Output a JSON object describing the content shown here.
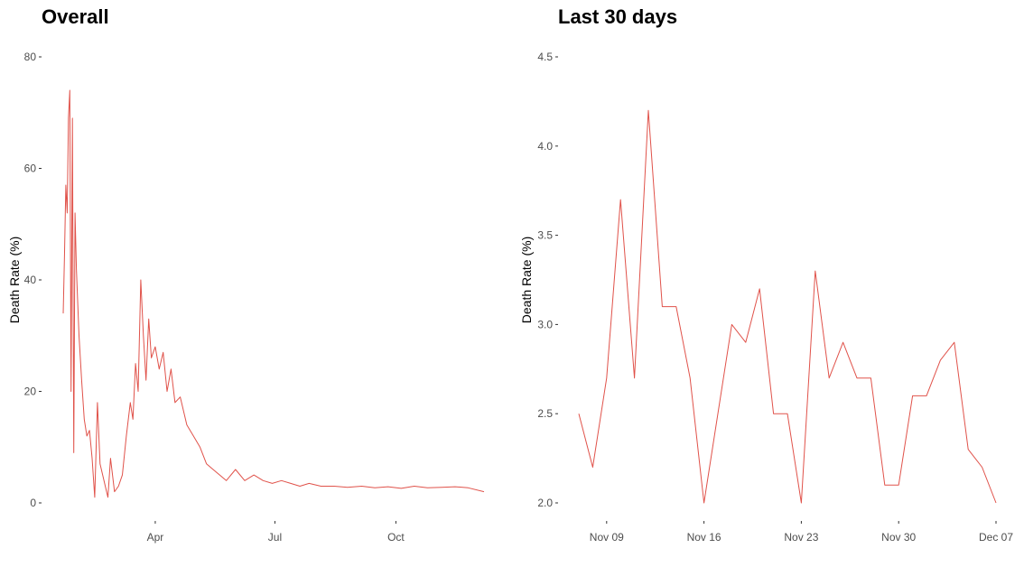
{
  "chart_data": [
    {
      "type": "line",
      "title": "Overall",
      "xlabel": "",
      "ylabel": "Death Rate (%)",
      "ylim": [
        0,
        80
      ],
      "yticks": [
        0,
        20,
        40,
        60,
        80
      ],
      "x_tick_labels": [
        "Apr",
        "Jul",
        "Oct"
      ],
      "xlim": [
        "2020-01-22",
        "2020-12-07"
      ],
      "grid": false,
      "series": [
        {
          "color": "#e0524a",
          "x": [
            "2020-01-22",
            "2020-01-23",
            "2020-01-24",
            "2020-01-25",
            "2020-01-26",
            "2020-01-27",
            "2020-01-28",
            "2020-01-29",
            "2020-01-30",
            "2020-01-31",
            "2020-02-01",
            "2020-02-03",
            "2020-02-05",
            "2020-02-07",
            "2020-02-09",
            "2020-02-11",
            "2020-02-13",
            "2020-02-15",
            "2020-02-17",
            "2020-02-19",
            "2020-02-21",
            "2020-02-23",
            "2020-02-25",
            "2020-02-27",
            "2020-03-01",
            "2020-03-04",
            "2020-03-07",
            "2020-03-10",
            "2020-03-13",
            "2020-03-15",
            "2020-03-17",
            "2020-03-19",
            "2020-03-21",
            "2020-03-23",
            "2020-03-25",
            "2020-03-27",
            "2020-03-29",
            "2020-04-01",
            "2020-04-04",
            "2020-04-07",
            "2020-04-10",
            "2020-04-13",
            "2020-04-16",
            "2020-04-20",
            "2020-04-25",
            "2020-04-30",
            "2020-05-05",
            "2020-05-10",
            "2020-05-15",
            "2020-05-20",
            "2020-05-25",
            "2020-06-01",
            "2020-06-08",
            "2020-06-15",
            "2020-06-22",
            "2020-06-29",
            "2020-07-06",
            "2020-07-13",
            "2020-07-20",
            "2020-07-27",
            "2020-08-05",
            "2020-08-15",
            "2020-08-25",
            "2020-09-05",
            "2020-09-15",
            "2020-09-25",
            "2020-10-05",
            "2020-10-15",
            "2020-10-25",
            "2020-11-05",
            "2020-11-15",
            "2020-11-25",
            "2020-12-07"
          ],
          "y": [
            34,
            45,
            57,
            52,
            69,
            74,
            20,
            69,
            9,
            52,
            42,
            30,
            22,
            15,
            12,
            13,
            8,
            1,
            18,
            7,
            5,
            3,
            1,
            8,
            2,
            3,
            5,
            12,
            18,
            15,
            25,
            20,
            40,
            30,
            22,
            33,
            26,
            28,
            24,
            27,
            20,
            24,
            18,
            19,
            14,
            12,
            10,
            7,
            6,
            5,
            4,
            6,
            4,
            5,
            4,
            3.5,
            4,
            3.5,
            3,
            3.5,
            3,
            3,
            2.8,
            3,
            2.7,
            2.9,
            2.6,
            3,
            2.7,
            2.8,
            2.9,
            2.7,
            2
          ]
        }
      ]
    },
    {
      "type": "line",
      "title": "Last 30 days",
      "xlabel": "",
      "ylabel": "Death Rate (%)",
      "ylim": [
        2.0,
        4.5
      ],
      "yticks": [
        "2.0",
        "2.5",
        "3.0",
        "3.5",
        "4.0",
        "4.5"
      ],
      "x_tick_labels": [
        "Nov 09",
        "Nov 16",
        "Nov 23",
        "Nov 30",
        "Dec 07"
      ],
      "xlim": [
        "2020-11-07",
        "2020-12-07"
      ],
      "grid": false,
      "series": [
        {
          "color": "#e0524a",
          "x": [
            "2020-11-07",
            "2020-11-08",
            "2020-11-09",
            "2020-11-10",
            "2020-11-11",
            "2020-11-12",
            "2020-11-13",
            "2020-11-14",
            "2020-11-15",
            "2020-11-16",
            "2020-11-17",
            "2020-11-18",
            "2020-11-19",
            "2020-11-20",
            "2020-11-21",
            "2020-11-22",
            "2020-11-23",
            "2020-11-24",
            "2020-11-25",
            "2020-11-26",
            "2020-11-27",
            "2020-11-28",
            "2020-11-29",
            "2020-11-30",
            "2020-12-01",
            "2020-12-02",
            "2020-12-03",
            "2020-12-04",
            "2020-12-05",
            "2020-12-06",
            "2020-12-07"
          ],
          "y": [
            2.5,
            2.2,
            2.7,
            3.7,
            2.7,
            4.2,
            3.1,
            3.1,
            2.7,
            2.0,
            2.5,
            3.0,
            2.9,
            3.2,
            2.5,
            2.5,
            2.0,
            3.3,
            2.7,
            2.9,
            2.7,
            2.7,
            2.1,
            2.1,
            2.6,
            2.6,
            2.8,
            2.9,
            2.3,
            2.2,
            2.0
          ]
        }
      ]
    }
  ]
}
